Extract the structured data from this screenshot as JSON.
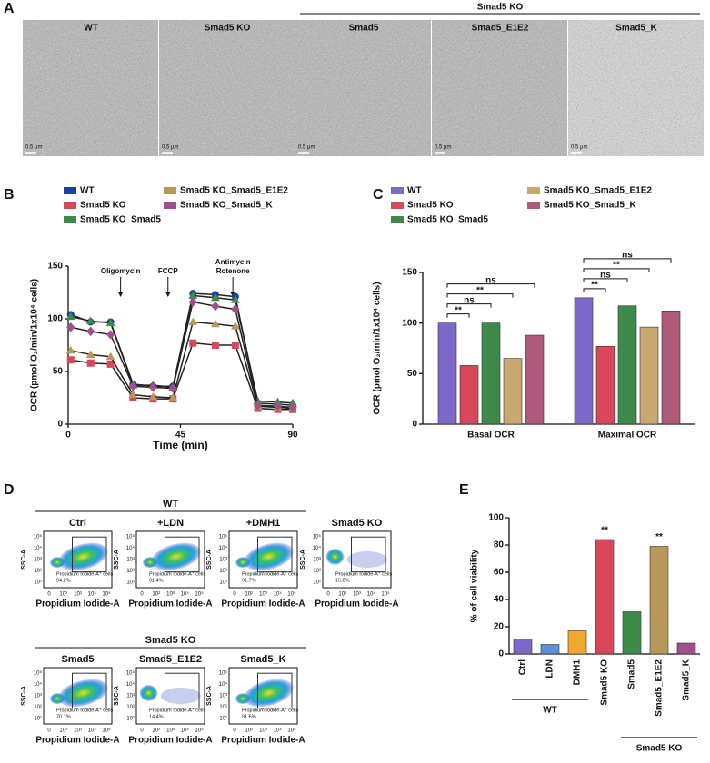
{
  "panel_a": {
    "label": "A",
    "group_label": "Smad5 KO",
    "images": [
      {
        "title": "WT",
        "scale": "0.5 μm"
      },
      {
        "title": "Smad5 KO",
        "scale": "0.5 μm"
      },
      {
        "title": "Smad5",
        "scale": "0.5 μm"
      },
      {
        "title": "Smad5_E1E2",
        "scale": "0.5 μm"
      },
      {
        "title": "Smad5_K",
        "scale": "0.5 μm"
      }
    ]
  },
  "chart_data": [
    {
      "type": "line",
      "panel": "B",
      "x_label": "Time (min)",
      "y_label": "OCR (pmol O₂/min/1x10⁴ cells)",
      "x": [
        1,
        9,
        17,
        26,
        34,
        42,
        50,
        59,
        67,
        76,
        84,
        90
      ],
      "xlim": [
        0,
        90
      ],
      "xticks": [
        0,
        45,
        90
      ],
      "ylim": [
        0,
        150
      ],
      "yticks": [
        0,
        50,
        100,
        150
      ],
      "annotations": [
        {
          "lines": [
            "Oligomycin"
          ],
          "x": 21
        },
        {
          "lines": [
            "FCCP"
          ],
          "x": 40
        },
        {
          "lines": [
            "Antimycin",
            "Rotenone"
          ],
          "x": 66
        }
      ],
      "series": [
        {
          "name": "WT",
          "color": "#1f3f9e",
          "marker": "circle",
          "values": [
            104,
            97,
            97,
            38,
            36,
            36,
            124,
            123,
            121,
            20,
            19,
            18
          ]
        },
        {
          "name": "Smad5 KO",
          "color": "#d9475a",
          "marker": "square",
          "values": [
            61,
            58,
            57,
            25,
            24,
            24,
            77,
            75,
            75,
            15,
            14,
            14
          ]
        },
        {
          "name": "Smad5 KO_Smad5",
          "color": "#3d8a4a",
          "marker": "triangle",
          "values": [
            102,
            98,
            96,
            37,
            37,
            35,
            122,
            120,
            118,
            22,
            21,
            20
          ]
        },
        {
          "name": "Smad5 KO_Smad5_E1E2",
          "color": "#b8985a",
          "marker": "triangle",
          "values": [
            70,
            66,
            64,
            28,
            26,
            25,
            97,
            95,
            93,
            17,
            16,
            15
          ]
        },
        {
          "name": "Smad5 KO_Smad5_K",
          "color": "#a0508a",
          "marker": "diamond",
          "values": [
            92,
            88,
            85,
            36,
            35,
            34,
            116,
            112,
            109,
            18,
            17,
            16
          ]
        }
      ]
    },
    {
      "type": "bar",
      "panel": "C",
      "y_label": "OCR (pmol O₂/min/1x10⁴ cells)",
      "categories": [
        "Basal OCR",
        "Maximal OCR"
      ],
      "ylim": [
        0,
        150
      ],
      "yticks": [
        0,
        50,
        100,
        150
      ],
      "series": [
        {
          "name": "WT",
          "color": "#7b68c8",
          "values": [
            100,
            125
          ]
        },
        {
          "name": "Smad5 KO",
          "color": "#d9475a",
          "values": [
            58,
            77
          ]
        },
        {
          "name": "Smad5 KO_Smad5",
          "color": "#3d8a4a",
          "values": [
            100,
            117
          ]
        },
        {
          "name": "Smad5 KO_Smad5_E1E2",
          "color": "#c8a870",
          "values": [
            65,
            96
          ]
        },
        {
          "name": "Smad5 KO_Smad5_K",
          "color": "#b05a7a",
          "values": [
            88,
            112
          ]
        }
      ],
      "significance": [
        [
          "**",
          "ns",
          "**",
          "ns"
        ],
        [
          "**",
          "ns",
          "**",
          "ns"
        ]
      ]
    },
    {
      "type": "bar",
      "panel": "E",
      "y_label": "% of cell viability",
      "categories": [
        "Ctrl",
        "LDN",
        "DMH1",
        "Smad5 KO",
        "Smad5",
        "Smad5_E1E2",
        "Smad5_K"
      ],
      "values": [
        11,
        7,
        17,
        84,
        31,
        79,
        8
      ],
      "colors": [
        "#7b68c8",
        "#5b8fd6",
        "#f0a830",
        "#d9475a",
        "#3d8a4a",
        "#b8985a",
        "#a0508a"
      ],
      "significance": [
        null,
        null,
        null,
        "**",
        null,
        "**",
        null
      ],
      "ylim": [
        0,
        100
      ],
      "yticks": [
        0,
        20,
        40,
        60,
        80,
        100
      ],
      "groups": [
        {
          "label": "WT",
          "first": 0,
          "last": 2
        },
        {
          "label": "Smad5 KO",
          "first": 4,
          "last": 6
        }
      ]
    }
  ],
  "panel_d": {
    "label": "D",
    "x_label": "Propidium Iodide-A",
    "y_label": "SSC-A",
    "gate_label": "Propidium Iodide-A⁺ cells",
    "xtick_labels": [
      "0",
      "10²",
      "10³",
      "10⁴",
      "10⁵"
    ],
    "ytick_labels": [
      "10¹",
      "10²",
      "10³",
      "10⁴",
      "10⁵"
    ],
    "groups": [
      {
        "label": "WT",
        "first": 0,
        "last": 2
      },
      {
        "label": "Smad5 KO",
        "first": 4,
        "last": 6
      }
    ],
    "plots": [
      {
        "title": "Ctrl",
        "percent": "94.2%"
      },
      {
        "title": "+LDN",
        "percent": "91.4%"
      },
      {
        "title": "+DMH1",
        "percent": "91.7%"
      },
      {
        "title": "Smad5 KO",
        "percent": "15.8%"
      },
      {
        "title": "Smad5",
        "percent": "70.1%"
      },
      {
        "title": "Smad5_E1E2",
        "percent": "14.4%"
      },
      {
        "title": "Smad5_K",
        "percent": "91.5%"
      }
    ]
  }
}
